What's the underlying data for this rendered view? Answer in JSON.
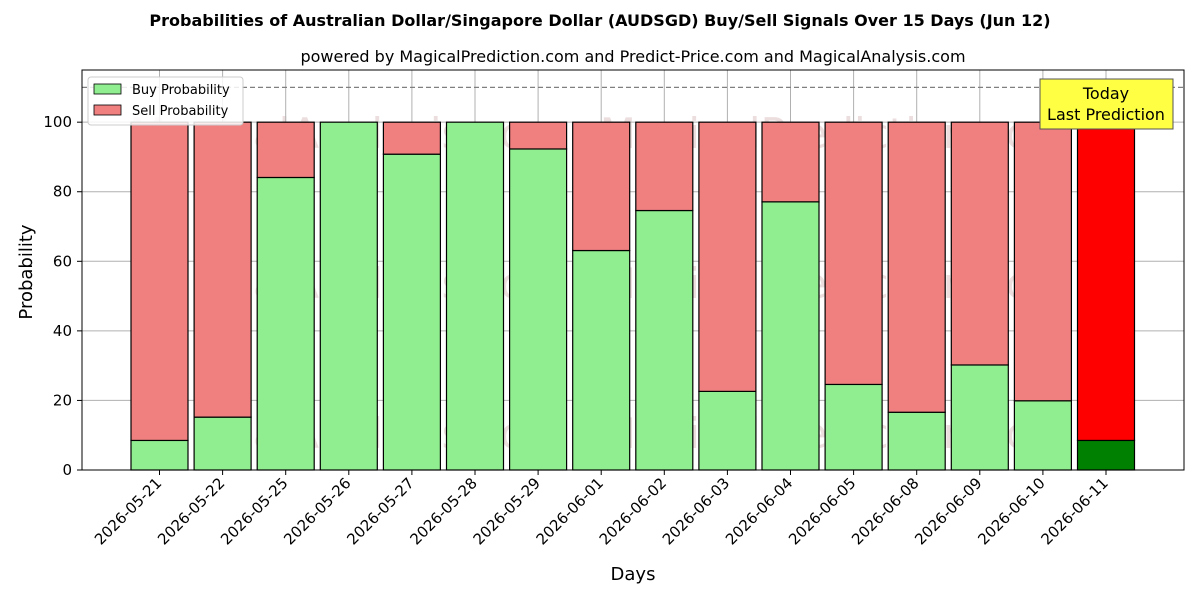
{
  "chart_data": {
    "type": "bar",
    "stacked": true,
    "title": "Probabilities of Australian Dollar/Singapore Dollar (AUDSGD) Buy/Sell Signals Over 15 Days (Jun 12)",
    "subtitle": "powered by MagicalPrediction.com and Predict-Price.com and MagicalAnalysis.com",
    "xlabel": "Days",
    "ylabel": "Probability",
    "ylim": [
      0,
      115
    ],
    "yticks": [
      0,
      20,
      40,
      60,
      80,
      100
    ],
    "grid": true,
    "legend_position": "top-left",
    "reference_line": 110,
    "categories": [
      "2026-05-21",
      "2026-05-22",
      "2026-05-25",
      "2026-05-26",
      "2026-05-27",
      "2026-05-28",
      "2026-05-29",
      "2026-06-01",
      "2026-06-02",
      "2026-06-03",
      "2026-06-04",
      "2026-06-05",
      "2026-06-08",
      "2026-06-09",
      "2026-06-10",
      "2026-06-11"
    ],
    "series": [
      {
        "name": "Buy Probability",
        "color": "#90ee90",
        "values": [
          8.5,
          15.2,
          84.1,
          100,
          90.8,
          100,
          92.3,
          63.1,
          74.6,
          22.6,
          77.1,
          24.6,
          16.6,
          30.2,
          19.9,
          8.5
        ]
      },
      {
        "name": "Sell Probability",
        "color": "#f08080",
        "values": [
          91.5,
          84.8,
          15.9,
          0,
          9.2,
          0,
          7.7,
          36.9,
          25.4,
          77.4,
          22.9,
          75.4,
          83.4,
          69.8,
          80.1,
          91.5
        ]
      }
    ],
    "highlight": {
      "index": 15,
      "buy_color": "#008000",
      "sell_color": "#ff0000"
    },
    "annotation": {
      "lines": [
        "Today",
        "Last Prediction"
      ],
      "bg_color": "#ffff44"
    },
    "watermarks": [
      "MagicalAnalysis.com",
      "MagicalPrediction.com"
    ]
  }
}
